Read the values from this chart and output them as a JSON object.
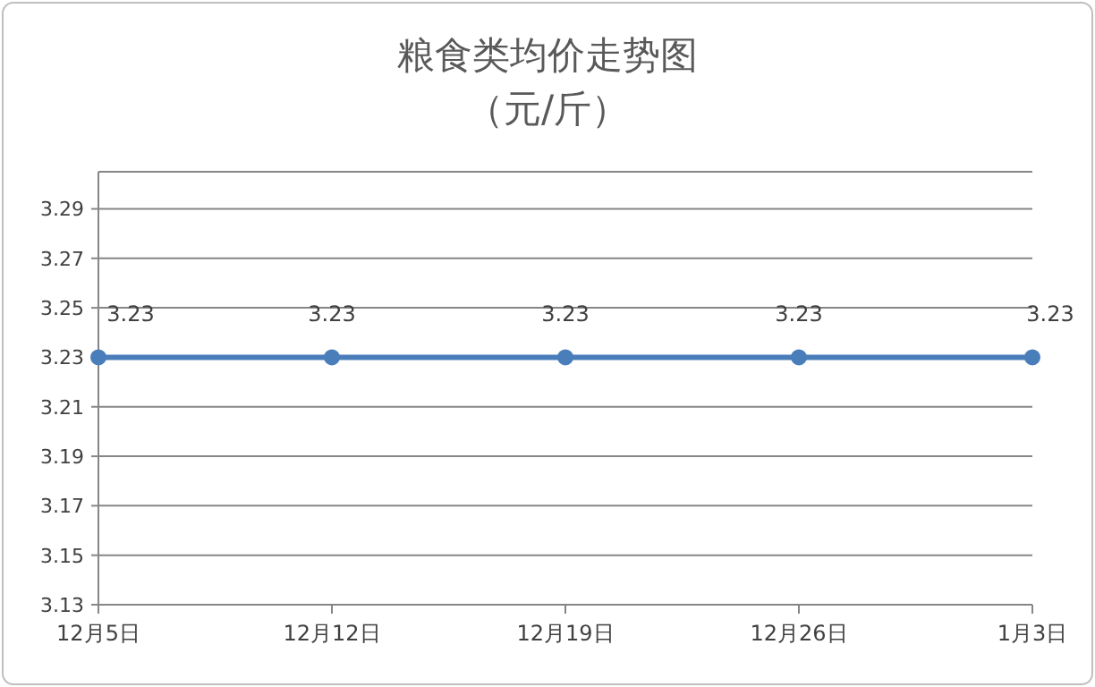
{
  "chart_data": {
    "type": "line",
    "title": "粮食类均价走势图",
    "subtitle": "（元/斤）",
    "categories": [
      "12月5日",
      "12月12日",
      "12月19日",
      "12月26日",
      "1月3日"
    ],
    "series": [
      {
        "color": "#4a7ebb",
        "values": [
          3.23,
          3.23,
          3.23,
          3.23,
          3.23
        ]
      }
    ],
    "ylim": [
      3.13,
      3.305
    ],
    "yticks": [
      3.13,
      3.15,
      3.17,
      3.19,
      3.21,
      3.23,
      3.25,
      3.27,
      3.29
    ],
    "grid": "y",
    "marker": "circle",
    "line_style": "solid",
    "data_labels": true
  }
}
